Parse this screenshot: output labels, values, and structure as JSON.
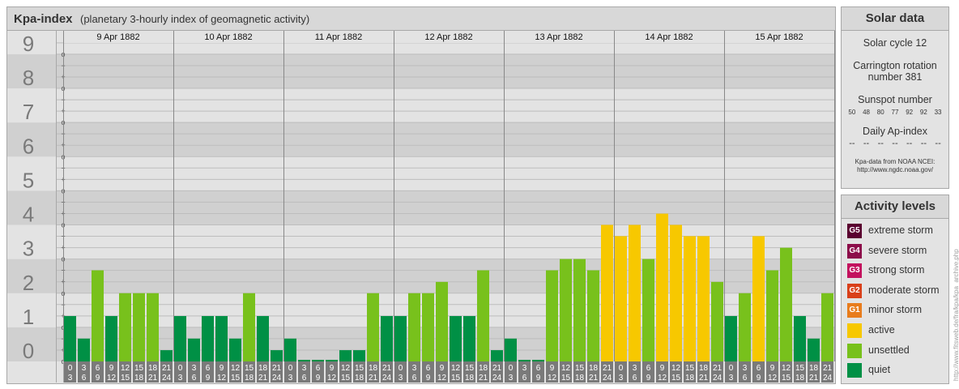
{
  "header": {
    "title": "Kpa-index",
    "subtitle": "(planetary 3-hourly index of geomagnetic activity)"
  },
  "colors": {
    "quiet": "#009045",
    "unsettled": "#78c11c",
    "active": "#f7c800",
    "G1": "#e87c1c",
    "G2": "#d9401a",
    "G3": "#c3125e",
    "G4": "#8c0d4a",
    "G5": "#5a0030"
  },
  "chart_data": {
    "type": "bar",
    "y_ticks": [
      "0",
      "1",
      "2",
      "3",
      "4",
      "5",
      "6",
      "7",
      "8",
      "9"
    ],
    "y_minor_labels": [
      "o",
      "+",
      "−"
    ],
    "ylim": [
      0,
      9.33
    ],
    "days": [
      "9 Apr 1882",
      "10 Apr 1882",
      "11 Apr 1882",
      "12 Apr 1882",
      "13 Apr 1882",
      "14 Apr 1882",
      "15 Apr 1882"
    ],
    "interval_labels": [
      [
        "0",
        "3"
      ],
      [
        "3",
        "6"
      ],
      [
        "6",
        "9"
      ],
      [
        "9",
        "12"
      ],
      [
        "12",
        "15"
      ],
      [
        "15",
        "18"
      ],
      [
        "18",
        "21"
      ],
      [
        "21",
        "24"
      ]
    ],
    "values": [
      [
        1.33,
        0.67,
        2.67,
        1.33,
        2.0,
        2.0,
        2.0,
        0.33
      ],
      [
        1.33,
        0.67,
        1.33,
        1.33,
        0.67,
        2.0,
        1.33,
        0.33
      ],
      [
        0.67,
        0.0,
        0.0,
        0.0,
        0.33,
        0.33,
        2.0,
        1.33
      ],
      [
        1.33,
        2.0,
        2.0,
        2.33,
        1.33,
        1.33,
        2.67,
        0.33
      ],
      [
        0.67,
        0.0,
        0.0,
        2.67,
        3.0,
        3.0,
        2.67,
        4.0
      ],
      [
        3.67,
        4.0,
        3.0,
        4.33,
        4.0,
        3.67,
        3.67,
        2.33
      ],
      [
        1.33,
        2.0,
        3.67,
        2.67,
        3.33,
        1.33,
        0.67,
        2.0
      ]
    ]
  },
  "solar": {
    "title": "Solar data",
    "cycle": "Solar cycle 12",
    "carrington_line1": "Carrington rotation",
    "carrington_line2": "number 381",
    "sunspot_title": "Sunspot number",
    "sunspot_values": [
      "50",
      "48",
      "80",
      "77",
      "92",
      "92",
      "33"
    ],
    "ap_title": "Daily Ap-index",
    "ap_values": [
      "--",
      "--",
      "--",
      "--",
      "--",
      "--",
      "--"
    ],
    "note_line1": "Kpa-data from NOAA NCEI:",
    "note_line2": "http://www.ngdc.noaa.gov/"
  },
  "activity": {
    "title": "Activity levels",
    "levels": [
      {
        "code": "G5",
        "label": "extreme storm",
        "color": "#5a0030"
      },
      {
        "code": "G4",
        "label": "severe storm",
        "color": "#8c0d4a"
      },
      {
        "code": "G3",
        "label": "strong storm",
        "color": "#c3125e"
      },
      {
        "code": "G2",
        "label": "moderate storm",
        "color": "#d9401a"
      },
      {
        "code": "G1",
        "label": "minor storm",
        "color": "#e87c1c"
      },
      {
        "code": "",
        "label": "active",
        "color": "#f7c800"
      },
      {
        "code": "",
        "label": "unsettled",
        "color": "#78c11c"
      },
      {
        "code": "",
        "label": "quiet",
        "color": "#009045"
      }
    ]
  },
  "credit": "http://www.fitsweb.de/fra/kpa/kpa_archive.php"
}
